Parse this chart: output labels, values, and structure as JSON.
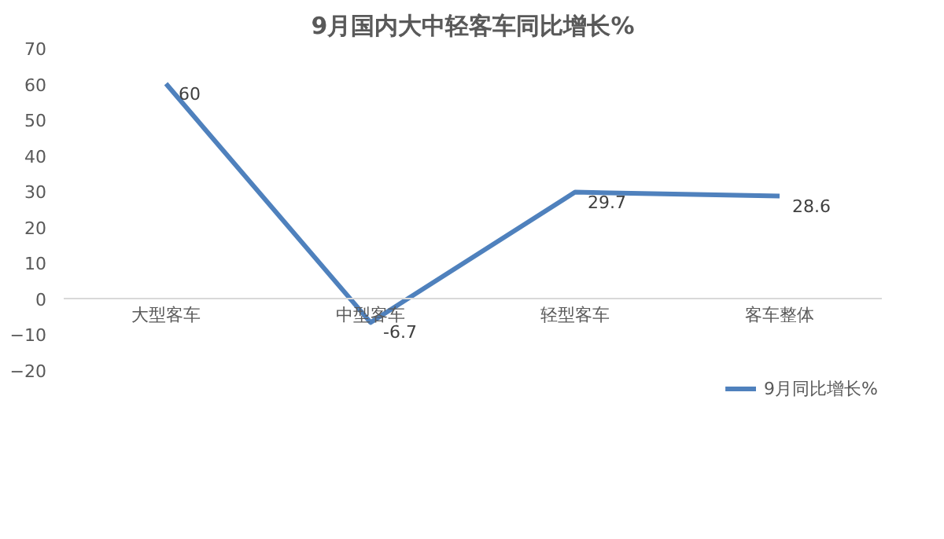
{
  "chart_data": {
    "type": "line",
    "title": "9月国内大中轻客车同比增长%",
    "categories": [
      "大型客车",
      "中型客车",
      "轻型客车",
      "客车整体"
    ],
    "series": [
      {
        "name": "9月同比增长%",
        "color": "#4f81bd",
        "values": [
          60,
          -6.7,
          29.7,
          28.6
        ]
      }
    ],
    "ylim": [
      -20,
      70
    ],
    "yticks": [
      -20,
      -10,
      0,
      10,
      20,
      30,
      40,
      50,
      60,
      70
    ],
    "grid": false,
    "legend": "bottom",
    "data_labels": true,
    "marker": "none",
    "line_style": "solid"
  }
}
